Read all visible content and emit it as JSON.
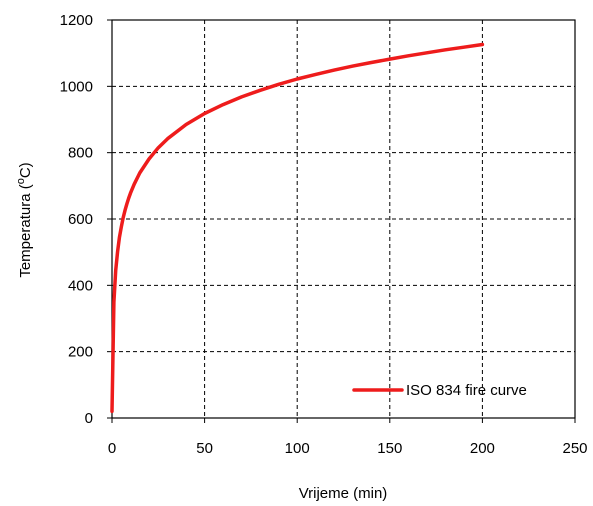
{
  "chart_data": {
    "type": "line",
    "xlabel": "Vrijeme (min)",
    "ylabel_prefix": "Temperatura (",
    "ylabel_sup": "o",
    "ylabel_suffix": "C)",
    "xlim": [
      0,
      250
    ],
    "ylim": [
      0,
      1200
    ],
    "x_ticks": [
      "0",
      "50",
      "100",
      "150",
      "200",
      "250"
    ],
    "y_ticks": [
      "0",
      "200",
      "400",
      "600",
      "800",
      "1000",
      "1200"
    ],
    "grid": true,
    "grid_style": "dashed",
    "legend_position": "bottom-right",
    "series": [
      {
        "name": "ISO 834 fire curve",
        "color": "#ee1c1c",
        "x": [
          0,
          1,
          2,
          3,
          4,
          5,
          6,
          7,
          8,
          9,
          10,
          12,
          15,
          20,
          25,
          30,
          40,
          50,
          60,
          70,
          80,
          90,
          100,
          110,
          120,
          130,
          140,
          150,
          160,
          170,
          180,
          190,
          200
        ],
        "y": [
          20,
          349,
          445,
          502,
          544,
          576,
          603,
          626,
          645,
          663,
          678,
          705,
          739,
          781,
          815,
          842,
          885,
          918,
          945,
          968,
          988,
          1006,
          1022,
          1036,
          1049,
          1061,
          1072,
          1082,
          1092,
          1101,
          1110,
          1118,
          1126
        ]
      }
    ]
  }
}
